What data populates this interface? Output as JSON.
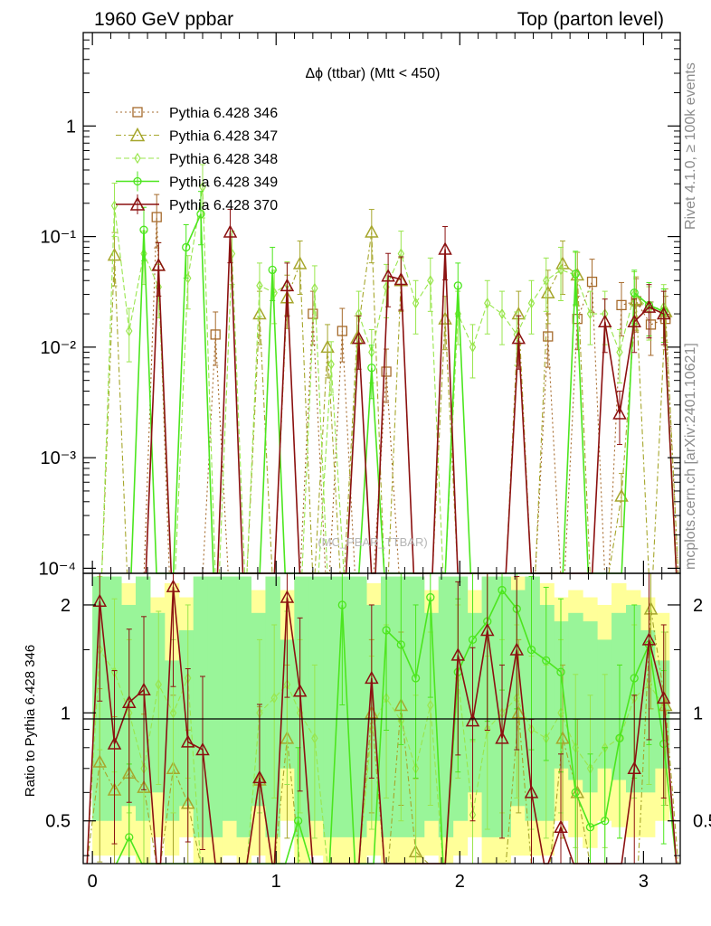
{
  "header": {
    "left": "1960 GeV ppbar",
    "right": "Top (parton level)"
  },
  "side_labels": {
    "rivet": "Rivet 4.1.0, ≥ 100k events",
    "mcplots": "mcplots.cern.ch [arXiv:2401.10621]"
  },
  "watermark": "(MC_PBAR_TTBAR)",
  "chart_data": [
    {
      "panel": "main",
      "type": "line",
      "title": "Δϕ (ttbar) (Mtt < 450)",
      "yscale": "log",
      "ylim": [
        9e-05,
        7
      ],
      "xlim": [
        -0.05,
        3.2
      ],
      "y_ticks": [
        {
          "v": 1,
          "label": "1"
        },
        {
          "v": 0.1,
          "label": "10⁻¹"
        },
        {
          "v": 0.01,
          "label": "10⁻²"
        },
        {
          "v": 0.001,
          "label": "10⁻³"
        },
        {
          "v": 0.0001,
          "label": "10⁻⁴"
        }
      ],
      "floor": 9e-05,
      "series": [
        {
          "name": "Pythia 6.428 346",
          "color": "#a66b2c",
          "marker": "square",
          "dash": "2,3",
          "points": [
            [
              0.35,
              0.15
            ],
            [
              0.67,
              0.013
            ],
            [
              1.2,
              0.02
            ],
            [
              1.36,
              0.014
            ],
            [
              1.6,
              0.006
            ],
            [
              2.48,
              0.0125
            ],
            [
              2.64,
              0.018
            ],
            [
              2.72,
              0.039
            ],
            [
              2.88,
              0.024
            ],
            [
              2.96,
              0.026
            ],
            [
              3.04,
              0.016
            ],
            [
              3.12,
              0.018
            ]
          ]
        },
        {
          "name": "Pythia 6.428 347",
          "color": "#a6a62c",
          "marker": "triangle",
          "dash": "6,3,2,3",
          "points": [
            [
              0.12,
              0.068
            ],
            [
              0.36,
              0.055
            ],
            [
              0.91,
              0.02
            ],
            [
              1.06,
              0.028
            ],
            [
              1.13,
              0.057
            ],
            [
              1.28,
              0.01
            ],
            [
              1.44,
              0.012
            ],
            [
              1.52,
              0.11
            ],
            [
              1.68,
              0.04
            ],
            [
              1.92,
              0.018
            ],
            [
              2.32,
              0.02
            ],
            [
              2.48,
              0.031
            ],
            [
              2.56,
              0.057
            ],
            [
              2.64,
              0.045
            ],
            [
              2.88,
              0.00045
            ],
            [
              2.96,
              0.027
            ],
            [
              3.12,
              0.021
            ]
          ]
        },
        {
          "name": "Pythia 6.428 348",
          "color": "#99e64d",
          "marker": "diamond",
          "dash": "6,3",
          "points": [
            [
              0.12,
              0.19
            ],
            [
              0.2,
              0.014
            ],
            [
              0.28,
              0.07
            ],
            [
              0.36,
              0.035
            ],
            [
              0.52,
              0.042
            ],
            [
              0.6,
              0.28
            ],
            [
              0.76,
              0.07
            ],
            [
              0.91,
              0.036
            ],
            [
              0.99,
              0.031
            ],
            [
              1.06,
              0.037
            ],
            [
              1.21,
              0.034
            ],
            [
              1.3,
              0.007
            ],
            [
              1.45,
              0.02
            ],
            [
              1.52,
              0.009
            ],
            [
              1.6,
              0.035
            ],
            [
              1.68,
              0.07
            ],
            [
              1.76,
              0.025
            ],
            [
              1.84,
              0.04
            ],
            [
              1.99,
              0.02
            ],
            [
              2.07,
              0.01
            ],
            [
              2.15,
              0.025
            ],
            [
              2.23,
              0.02
            ],
            [
              2.31,
              0.013
            ],
            [
              2.39,
              0.025
            ],
            [
              2.47,
              0.04
            ],
            [
              2.55,
              0.05
            ],
            [
              2.63,
              0.045
            ],
            [
              2.71,
              0.02
            ],
            [
              2.79,
              0.02
            ],
            [
              2.87,
              0.009
            ],
            [
              2.95,
              0.03
            ],
            [
              3.03,
              0.022
            ],
            [
              3.11,
              0.023
            ]
          ]
        },
        {
          "name": "Pythia 6.428 349",
          "color": "#4ce61e",
          "marker": "circle",
          "dash": "",
          "points": [
            [
              0.28,
              0.115
            ],
            [
              0.51,
              0.08
            ],
            [
              0.59,
              0.16
            ],
            [
              0.98,
              0.05
            ],
            [
              1.52,
              0.0065
            ],
            [
              1.99,
              0.036
            ],
            [
              2.63,
              0.046
            ],
            [
              2.95,
              0.031
            ],
            [
              3.03,
              0.024
            ],
            [
              3.11,
              0.021
            ]
          ]
        },
        {
          "name": "Pythia 6.428 370",
          "color": "#8b1010",
          "marker": "triangle",
          "dash": "",
          "points": [
            [
              0.36,
              0.055
            ],
            [
              0.75,
              0.11
            ],
            [
              1.06,
              0.036
            ],
            [
              1.45,
              0.012
            ],
            [
              1.61,
              0.044
            ],
            [
              1.68,
              0.041
            ],
            [
              1.92,
              0.077
            ],
            [
              2.32,
              0.012
            ],
            [
              2.79,
              0.017
            ],
            [
              2.87,
              0.0025
            ],
            [
              2.95,
              0.017
            ],
            [
              3.03,
              0.023
            ],
            [
              3.11,
              0.02
            ]
          ]
        }
      ]
    },
    {
      "panel": "ratio",
      "type": "line",
      "ylabel": "Ratio to Pythia 6.428 346",
      "xlabel": "",
      "yscale": "log",
      "ylim": [
        0.38,
        2.45
      ],
      "xlim": [
        -0.05,
        3.2
      ],
      "y_ticks": [
        {
          "v": 0.5,
          "label": "0.5"
        },
        {
          "v": 1,
          "label": "1"
        },
        {
          "v": 2,
          "label": "2"
        }
      ],
      "x_ticks": [
        {
          "v": 0,
          "label": "0"
        },
        {
          "v": 1,
          "label": "1"
        },
        {
          "v": 2,
          "label": "2"
        },
        {
          "v": 3,
          "label": "3"
        }
      ],
      "band_green": [
        [
          2.4,
          0.5
        ],
        [
          2.4,
          0.5
        ],
        [
          2.0,
          0.55
        ],
        [
          2.4,
          0.5
        ],
        [
          1.9,
          0.6
        ],
        [
          1.4,
          0.5
        ],
        [
          1.7,
          0.55
        ],
        [
          2.4,
          0.45
        ],
        [
          2.4,
          0.45
        ],
        [
          2.4,
          0.5
        ],
        [
          2.4,
          0.45
        ],
        [
          1.9,
          0.55
        ],
        [
          2.4,
          0.45
        ],
        [
          1.6,
          0.7
        ],
        [
          2.4,
          0.45
        ],
        [
          2.4,
          0.5
        ],
        [
          2.4,
          0.45
        ],
        [
          2.4,
          0.45
        ],
        [
          2.4,
          0.45
        ],
        [
          2.0,
          0.5
        ],
        [
          2.4,
          0.45
        ],
        [
          2.4,
          0.45
        ],
        [
          2.4,
          0.45
        ],
        [
          1.9,
          0.5
        ],
        [
          2.4,
          0.45
        ],
        [
          2.4,
          0.5
        ],
        [
          1.9,
          0.6
        ],
        [
          2.4,
          0.45
        ],
        [
          2.4,
          0.45
        ],
        [
          2.2,
          0.55
        ],
        [
          2.4,
          0.5
        ],
        [
          2.0,
          0.5
        ],
        [
          1.8,
          0.7
        ],
        [
          1.9,
          0.65
        ],
        [
          1.8,
          0.6
        ],
        [
          1.6,
          0.7
        ],
        [
          1.9,
          0.65
        ],
        [
          2.0,
          0.6
        ],
        [
          1.7,
          0.6
        ],
        [
          1.4,
          0.7
        ]
      ],
      "band_yellow": [
        [
          2.4,
          0.4
        ],
        [
          2.4,
          0.4
        ],
        [
          2.3,
          0.4
        ],
        [
          2.4,
          0.38
        ],
        [
          2.1,
          0.45
        ],
        [
          2.3,
          0.4
        ],
        [
          2.1,
          0.45
        ],
        [
          2.4,
          0.38
        ],
        [
          2.4,
          0.38
        ],
        [
          2.4,
          0.4
        ],
        [
          2.4,
          0.38
        ],
        [
          2.2,
          0.4
        ],
        [
          2.4,
          0.38
        ],
        [
          2.2,
          0.5
        ],
        [
          2.4,
          0.38
        ],
        [
          2.4,
          0.4
        ],
        [
          2.4,
          0.38
        ],
        [
          2.4,
          0.38
        ],
        [
          2.4,
          0.38
        ],
        [
          2.3,
          0.4
        ],
        [
          2.4,
          0.38
        ],
        [
          2.4,
          0.38
        ],
        [
          2.4,
          0.38
        ],
        [
          2.2,
          0.4
        ],
        [
          2.4,
          0.38
        ],
        [
          2.4,
          0.4
        ],
        [
          2.2,
          0.45
        ],
        [
          2.4,
          0.38
        ],
        [
          2.4,
          0.38
        ],
        [
          2.4,
          0.4
        ],
        [
          2.4,
          0.4
        ],
        [
          2.3,
          0.4
        ],
        [
          2.1,
          0.5
        ],
        [
          2.2,
          0.45
        ],
        [
          2.1,
          0.42
        ],
        [
          2.0,
          0.5
        ],
        [
          2.3,
          0.48
        ],
        [
          2.2,
          0.45
        ],
        [
          2.1,
          0.45
        ],
        [
          1.9,
          0.5
        ]
      ],
      "series": [
        {
          "name": "Pythia 6.428 347",
          "color": "#a6a62c",
          "marker": "triangle",
          "dash": "6,3,2,3",
          "points": [
            [
              0.04,
              0.73
            ],
            [
              0.12,
              0.61
            ],
            [
              0.2,
              0.68
            ],
            [
              0.28,
              0.62
            ],
            [
              0.44,
              0.7
            ],
            [
              0.52,
              0.56
            ],
            [
              0.91,
              0.65
            ],
            [
              1.06,
              0.85
            ],
            [
              1.52,
              1.0
            ],
            [
              1.68,
              1.05
            ],
            [
              1.76,
              0.41
            ],
            [
              2.32,
              1.0
            ],
            [
              2.56,
              0.85
            ],
            [
              2.64,
              0.6
            ],
            [
              3.04,
              1.95
            ],
            [
              3.12,
              1.05
            ]
          ]
        },
        {
          "name": "Pythia 6.428 348",
          "color": "#99e64d",
          "marker": "diamond",
          "dash": "6,3",
          "points": [
            [
              0.04,
              1.5
            ],
            [
              0.12,
              1.3
            ],
            [
              0.2,
              1.0
            ],
            [
              0.28,
              0.7
            ],
            [
              0.36,
              1.2
            ],
            [
              0.44,
              1.0
            ],
            [
              0.52,
              1.25
            ],
            [
              0.91,
              1.0
            ],
            [
              0.99,
              1.1
            ],
            [
              1.06,
              1.2
            ],
            [
              1.13,
              1.0
            ],
            [
              1.21,
              0.85
            ],
            [
              1.52,
              0.9
            ],
            [
              1.6,
              1.1
            ],
            [
              1.68,
              0.95
            ],
            [
              1.76,
              0.7
            ],
            [
              1.84,
              1.05
            ],
            [
              1.99,
              1.25
            ],
            [
              2.07,
              0.52
            ],
            [
              2.15,
              0.9
            ],
            [
              2.23,
              1.0
            ],
            [
              2.31,
              1.1
            ],
            [
              2.39,
              0.9
            ],
            [
              2.47,
              0.85
            ],
            [
              2.55,
              1.0
            ],
            [
              2.63,
              0.8
            ],
            [
              2.71,
              0.7
            ],
            [
              2.79,
              0.8
            ],
            [
              2.87,
              0.85
            ],
            [
              2.95,
              1.1
            ],
            [
              3.03,
              1.2
            ],
            [
              3.11,
              1.05
            ]
          ]
        },
        {
          "name": "Pythia 6.428 349",
          "color": "#4ce61e",
          "marker": "circle",
          "dash": "",
          "points": [
            [
              0.2,
              0.45
            ],
            [
              1.12,
              0.5
            ],
            [
              1.36,
              2.0
            ],
            [
              1.6,
              1.7
            ],
            [
              1.68,
              1.55
            ],
            [
              1.76,
              1.25
            ],
            [
              1.84,
              2.1
            ],
            [
              1.99,
              1.3
            ],
            [
              2.07,
              1.6
            ],
            [
              2.15,
              1.8
            ],
            [
              2.23,
              2.2
            ],
            [
              2.31,
              1.95
            ],
            [
              2.39,
              1.5
            ],
            [
              2.47,
              1.4
            ],
            [
              2.55,
              1.3
            ],
            [
              2.63,
              0.6
            ],
            [
              2.71,
              0.48
            ],
            [
              2.79,
              0.5
            ],
            [
              2.87,
              0.85
            ],
            [
              2.95,
              1.25
            ],
            [
              3.03,
              1.55
            ],
            [
              3.11,
              0.82
            ]
          ]
        },
        {
          "name": "Pythia 6.428 370",
          "color": "#8b1010",
          "marker": "triangle",
          "dash": "",
          "points": [
            [
              0.04,
              2.05
            ],
            [
              0.12,
              0.82
            ],
            [
              0.2,
              1.07
            ],
            [
              0.28,
              1.16
            ],
            [
              0.44,
              2.25
            ],
            [
              0.52,
              0.83
            ],
            [
              0.6,
              0.79
            ],
            [
              0.91,
              0.66
            ],
            [
              1.06,
              2.1
            ],
            [
              1.13,
              1.15
            ],
            [
              1.52,
              1.25
            ],
            [
              1.99,
              1.45
            ],
            [
              2.07,
              0.95
            ],
            [
              2.15,
              1.7
            ],
            [
              2.23,
              0.85
            ],
            [
              2.31,
              1.5
            ],
            [
              2.39,
              0.6
            ],
            [
              2.55,
              0.48
            ],
            [
              2.95,
              0.7
            ],
            [
              3.03,
              1.6
            ],
            [
              3.11,
              1.1
            ]
          ]
        }
      ]
    }
  ]
}
